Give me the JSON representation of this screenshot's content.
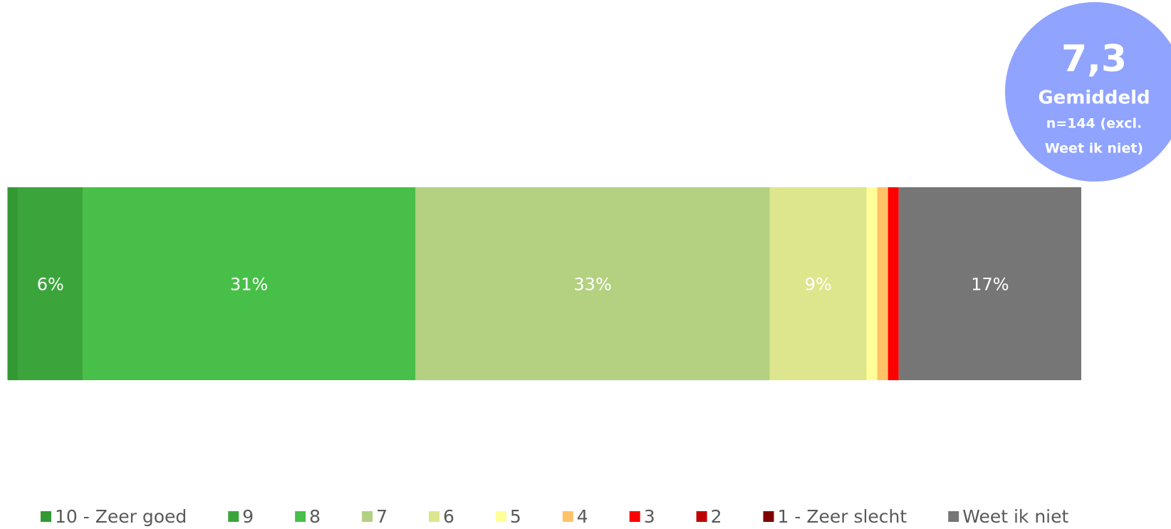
{
  "chart_data": {
    "type": "stacked_bar",
    "xlim": [
      0,
      100
    ],
    "series": [
      {
        "name": "10 - Zeer goed",
        "color": "#339933",
        "values": [
          1
        ],
        "value_labels": [
          null
        ]
      },
      {
        "name": "9",
        "color": "#3ba53b",
        "values": [
          6
        ],
        "value_labels": [
          "6%"
        ]
      },
      {
        "name": "8",
        "color": "#48bf48",
        "values": [
          31
        ],
        "value_labels": [
          "31%"
        ]
      },
      {
        "name": "7",
        "color": "#b3d180",
        "values": [
          33
        ],
        "value_labels": [
          "33%"
        ]
      },
      {
        "name": "6",
        "color": "#dde68c",
        "values": [
          9
        ],
        "value_labels": [
          "9%"
        ]
      },
      {
        "name": "5",
        "color": "#ffff99",
        "values": [
          1
        ],
        "value_labels": [
          null
        ]
      },
      {
        "name": "4",
        "color": "#ffc266",
        "values": [
          1
        ],
        "value_labels": [
          null
        ]
      },
      {
        "name": "3",
        "color": "#ff0000",
        "values": [
          1
        ],
        "value_labels": [
          null
        ]
      },
      {
        "name": "2",
        "color": "#c00000",
        "values": [
          0
        ],
        "value_labels": [
          null
        ]
      },
      {
        "name": "1 - Zeer slecht",
        "color": "#800000",
        "values": [
          0
        ],
        "value_labels": [
          null
        ]
      },
      {
        "name": "Weet ik niet",
        "color": "#767676",
        "values": [
          17
        ],
        "value_labels": [
          "17%"
        ]
      }
    ],
    "badge": {
      "value": "7,3",
      "label": "Gemiddeld",
      "note_line1": "n=144 (excl.",
      "note_line2": "Weet ik niet)",
      "color": "#8fa3ff"
    }
  }
}
